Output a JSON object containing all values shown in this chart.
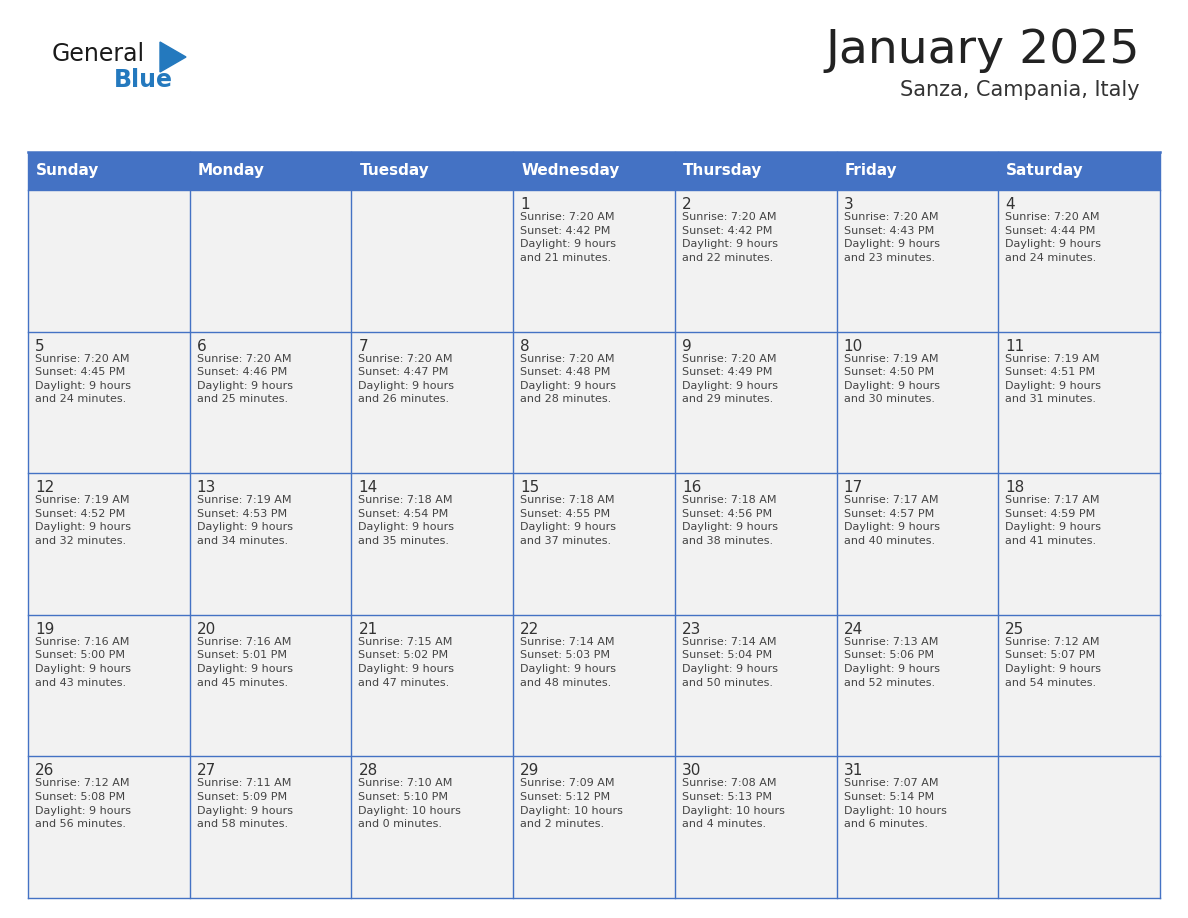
{
  "title": "January 2025",
  "subtitle": "Sanza, Campania, Italy",
  "days_of_week": [
    "Sunday",
    "Monday",
    "Tuesday",
    "Wednesday",
    "Thursday",
    "Friday",
    "Saturday"
  ],
  "header_bg": "#4472C4",
  "header_text_color": "#FFFFFF",
  "cell_bg": "#F2F2F2",
  "cell_border_color": "#4472C4",
  "day_number_color": "#333333",
  "cell_text_color": "#444444",
  "title_color": "#222222",
  "subtitle_color": "#333333",
  "blue_color": "#2479BE",
  "logo_general_color": "#1a1a1a",
  "weeks": [
    [
      {
        "day": "",
        "info": ""
      },
      {
        "day": "",
        "info": ""
      },
      {
        "day": "",
        "info": ""
      },
      {
        "day": "1",
        "info": "Sunrise: 7:20 AM\nSunset: 4:42 PM\nDaylight: 9 hours\nand 21 minutes."
      },
      {
        "day": "2",
        "info": "Sunrise: 7:20 AM\nSunset: 4:42 PM\nDaylight: 9 hours\nand 22 minutes."
      },
      {
        "day": "3",
        "info": "Sunrise: 7:20 AM\nSunset: 4:43 PM\nDaylight: 9 hours\nand 23 minutes."
      },
      {
        "day": "4",
        "info": "Sunrise: 7:20 AM\nSunset: 4:44 PM\nDaylight: 9 hours\nand 24 minutes."
      }
    ],
    [
      {
        "day": "5",
        "info": "Sunrise: 7:20 AM\nSunset: 4:45 PM\nDaylight: 9 hours\nand 24 minutes."
      },
      {
        "day": "6",
        "info": "Sunrise: 7:20 AM\nSunset: 4:46 PM\nDaylight: 9 hours\nand 25 minutes."
      },
      {
        "day": "7",
        "info": "Sunrise: 7:20 AM\nSunset: 4:47 PM\nDaylight: 9 hours\nand 26 minutes."
      },
      {
        "day": "8",
        "info": "Sunrise: 7:20 AM\nSunset: 4:48 PM\nDaylight: 9 hours\nand 28 minutes."
      },
      {
        "day": "9",
        "info": "Sunrise: 7:20 AM\nSunset: 4:49 PM\nDaylight: 9 hours\nand 29 minutes."
      },
      {
        "day": "10",
        "info": "Sunrise: 7:19 AM\nSunset: 4:50 PM\nDaylight: 9 hours\nand 30 minutes."
      },
      {
        "day": "11",
        "info": "Sunrise: 7:19 AM\nSunset: 4:51 PM\nDaylight: 9 hours\nand 31 minutes."
      }
    ],
    [
      {
        "day": "12",
        "info": "Sunrise: 7:19 AM\nSunset: 4:52 PM\nDaylight: 9 hours\nand 32 minutes."
      },
      {
        "day": "13",
        "info": "Sunrise: 7:19 AM\nSunset: 4:53 PM\nDaylight: 9 hours\nand 34 minutes."
      },
      {
        "day": "14",
        "info": "Sunrise: 7:18 AM\nSunset: 4:54 PM\nDaylight: 9 hours\nand 35 minutes."
      },
      {
        "day": "15",
        "info": "Sunrise: 7:18 AM\nSunset: 4:55 PM\nDaylight: 9 hours\nand 37 minutes."
      },
      {
        "day": "16",
        "info": "Sunrise: 7:18 AM\nSunset: 4:56 PM\nDaylight: 9 hours\nand 38 minutes."
      },
      {
        "day": "17",
        "info": "Sunrise: 7:17 AM\nSunset: 4:57 PM\nDaylight: 9 hours\nand 40 minutes."
      },
      {
        "day": "18",
        "info": "Sunrise: 7:17 AM\nSunset: 4:59 PM\nDaylight: 9 hours\nand 41 minutes."
      }
    ],
    [
      {
        "day": "19",
        "info": "Sunrise: 7:16 AM\nSunset: 5:00 PM\nDaylight: 9 hours\nand 43 minutes."
      },
      {
        "day": "20",
        "info": "Sunrise: 7:16 AM\nSunset: 5:01 PM\nDaylight: 9 hours\nand 45 minutes."
      },
      {
        "day": "21",
        "info": "Sunrise: 7:15 AM\nSunset: 5:02 PM\nDaylight: 9 hours\nand 47 minutes."
      },
      {
        "day": "22",
        "info": "Sunrise: 7:14 AM\nSunset: 5:03 PM\nDaylight: 9 hours\nand 48 minutes."
      },
      {
        "day": "23",
        "info": "Sunrise: 7:14 AM\nSunset: 5:04 PM\nDaylight: 9 hours\nand 50 minutes."
      },
      {
        "day": "24",
        "info": "Sunrise: 7:13 AM\nSunset: 5:06 PM\nDaylight: 9 hours\nand 52 minutes."
      },
      {
        "day": "25",
        "info": "Sunrise: 7:12 AM\nSunset: 5:07 PM\nDaylight: 9 hours\nand 54 minutes."
      }
    ],
    [
      {
        "day": "26",
        "info": "Sunrise: 7:12 AM\nSunset: 5:08 PM\nDaylight: 9 hours\nand 56 minutes."
      },
      {
        "day": "27",
        "info": "Sunrise: 7:11 AM\nSunset: 5:09 PM\nDaylight: 9 hours\nand 58 minutes."
      },
      {
        "day": "28",
        "info": "Sunrise: 7:10 AM\nSunset: 5:10 PM\nDaylight: 10 hours\nand 0 minutes."
      },
      {
        "day": "29",
        "info": "Sunrise: 7:09 AM\nSunset: 5:12 PM\nDaylight: 10 hours\nand 2 minutes."
      },
      {
        "day": "30",
        "info": "Sunrise: 7:08 AM\nSunset: 5:13 PM\nDaylight: 10 hours\nand 4 minutes."
      },
      {
        "day": "31",
        "info": "Sunrise: 7:07 AM\nSunset: 5:14 PM\nDaylight: 10 hours\nand 6 minutes."
      },
      {
        "day": "",
        "info": ""
      }
    ]
  ]
}
